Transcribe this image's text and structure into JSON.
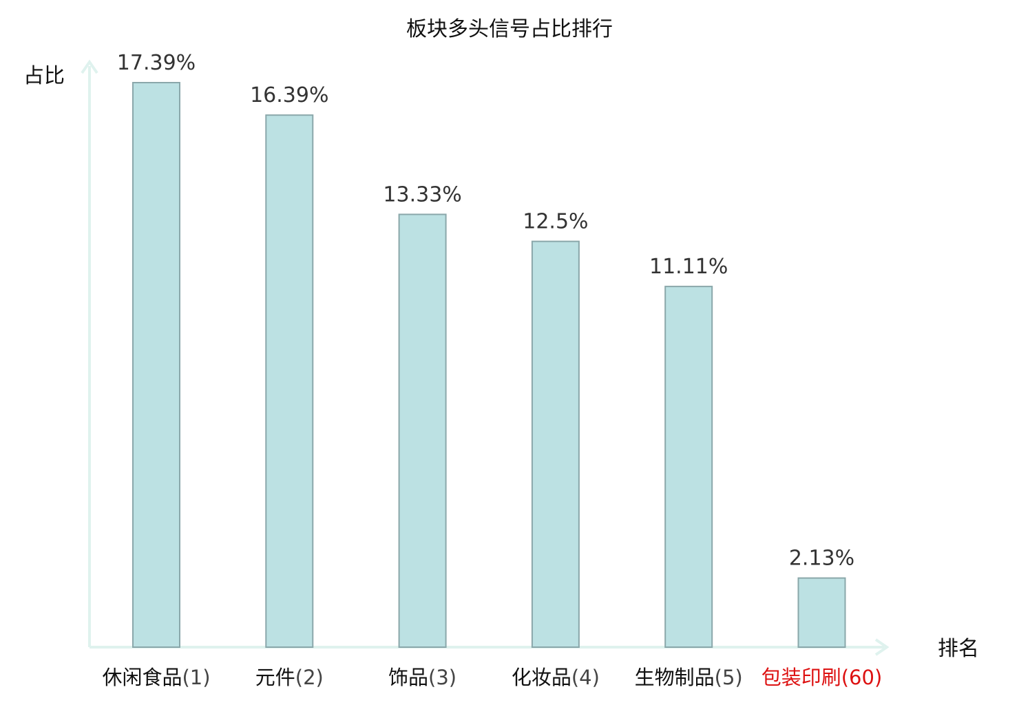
{
  "chart_data": {
    "type": "bar",
    "title": "板块多头信号占比排行",
    "xlabel": "排名",
    "ylabel": "占比",
    "ylim": [
      0,
      18
    ],
    "grid": false,
    "legend": "none",
    "categories": [
      {
        "name": "休闲食品",
        "rank": "(1)",
        "highlight": false
      },
      {
        "name": "元件",
        "rank": "(2)",
        "highlight": false
      },
      {
        "name": "饰品",
        "rank": "(3)",
        "highlight": false
      },
      {
        "name": "化妆品",
        "rank": "(4)",
        "highlight": false
      },
      {
        "name": "生物制品",
        "rank": "(5)",
        "highlight": false
      },
      {
        "name": "包装印刷",
        "rank": "(60)",
        "highlight": true
      }
    ],
    "values": [
      17.39,
      16.39,
      13.33,
      12.5,
      11.11,
      2.13
    ],
    "value_labels": [
      "17.39%",
      "16.39%",
      "13.33%",
      "12.5%",
      "11.11%",
      "2.13%"
    ]
  },
  "colors": {
    "bar_fill": "#bce1e3",
    "bar_stroke": "#8aa7aa",
    "axis": "#dff2ee",
    "category_text": "#111111",
    "rank_text": "#444444",
    "highlight": "#dd1111"
  }
}
